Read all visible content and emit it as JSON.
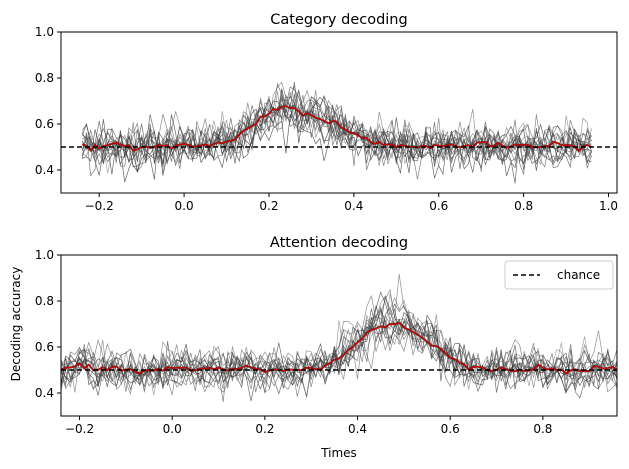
{
  "chart_data": [
    {
      "type": "line",
      "title": "Category decoding",
      "xlabel": "",
      "ylabel": "",
      "xlim": [
        -0.29,
        1.02
      ],
      "ylim": [
        0.3,
        1.0
      ],
      "xticks": [
        "-0.2",
        "0.0",
        "0.2",
        "0.4",
        "0.6",
        "0.8",
        "1.0"
      ],
      "yticks": [
        "0.4",
        "0.6",
        "0.8",
        "1.0"
      ],
      "chance_level": 0.5,
      "legend": null,
      "grid": false,
      "subject_traces": 15,
      "x": [
        -0.24,
        -0.2,
        -0.16,
        -0.12,
        -0.08,
        -0.04,
        0.0,
        0.04,
        0.08,
        0.12,
        0.16,
        0.2,
        0.24,
        0.28,
        0.32,
        0.36,
        0.4,
        0.44,
        0.48,
        0.52,
        0.56,
        0.6,
        0.64,
        0.68,
        0.72,
        0.76,
        0.8,
        0.84,
        0.88,
        0.92,
        0.96
      ],
      "series": [
        {
          "name": "",
          "color": "#cc0000",
          "values": [
            0.5,
            0.5,
            0.51,
            0.49,
            0.51,
            0.5,
            0.51,
            0.5,
            0.52,
            0.53,
            0.6,
            0.65,
            0.68,
            0.65,
            0.63,
            0.6,
            0.55,
            0.53,
            0.51,
            0.5,
            0.5,
            0.51,
            0.5,
            0.51,
            0.51,
            0.5,
            0.51,
            0.5,
            0.51,
            0.5,
            0.5
          ]
        }
      ]
    },
    {
      "type": "line",
      "title": "Attention decoding",
      "xlabel": "Times",
      "ylabel": "Decoding accuracy",
      "xlim": [
        -0.24,
        0.96
      ],
      "ylim": [
        0.3,
        1.0
      ],
      "xticks": [
        "-0.2",
        "0.0",
        "0.2",
        "0.4",
        "0.6",
        "0.8"
      ],
      "yticks": [
        "0.4",
        "0.6",
        "0.8",
        "1.0"
      ],
      "chance_level": 0.5,
      "legend": {
        "placement": "upper right",
        "entries": [
          "chance"
        ]
      },
      "grid": false,
      "subject_traces": 15,
      "x": [
        -0.24,
        -0.2,
        -0.16,
        -0.12,
        -0.08,
        -0.04,
        0.0,
        0.04,
        0.08,
        0.12,
        0.16,
        0.2,
        0.24,
        0.28,
        0.32,
        0.36,
        0.4,
        0.44,
        0.48,
        0.52,
        0.56,
        0.6,
        0.64,
        0.68,
        0.72,
        0.76,
        0.8,
        0.84,
        0.88,
        0.92,
        0.96
      ],
      "series": [
        {
          "name": "",
          "color": "#cc0000",
          "values": [
            0.5,
            0.52,
            0.5,
            0.51,
            0.49,
            0.5,
            0.51,
            0.5,
            0.51,
            0.5,
            0.51,
            0.5,
            0.5,
            0.5,
            0.51,
            0.55,
            0.62,
            0.69,
            0.7,
            0.67,
            0.62,
            0.55,
            0.51,
            0.5,
            0.51,
            0.5,
            0.51,
            0.5,
            0.49,
            0.51,
            0.5
          ]
        }
      ]
    }
  ],
  "colors": {
    "mean": "#cc0000",
    "subjects": "#404040",
    "chance": "#000000"
  }
}
